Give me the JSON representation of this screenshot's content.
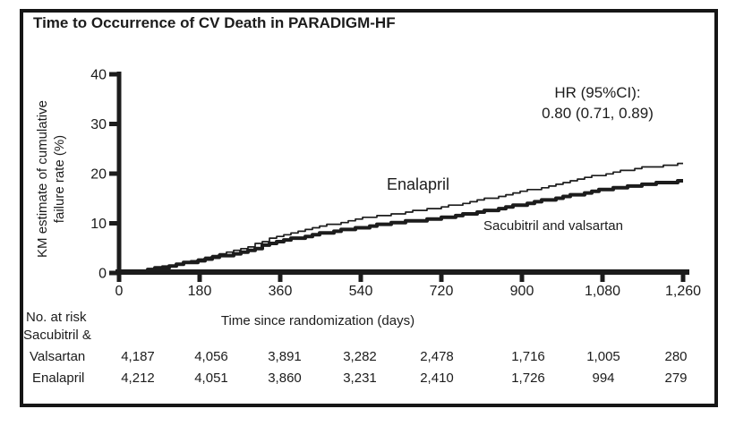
{
  "figure": {
    "title": "Time to Occurrence of CV Death in PARADIGM-HF"
  },
  "chart_data": {
    "type": "line",
    "subtype": "kaplan-meier-cumulative-failure",
    "title": "Time to Occurrence of CV Death in PARADIGM-HF",
    "xlabel": "Time since randomization (days)",
    "ylabel": "KM estimate of cumulative failure rate (%)",
    "ylabel_lines": [
      "KM estimate of cumulative",
      "failure rate (%)"
    ],
    "xlim": [
      0,
      1260
    ],
    "ylim": [
      0,
      40
    ],
    "x_ticks": [
      0,
      180,
      360,
      540,
      720,
      900,
      1080,
      1260
    ],
    "x_tick_labels": [
      "0",
      "180",
      "360",
      "540",
      "720",
      "900",
      "1,080",
      "1,260"
    ],
    "y_ticks": [
      0,
      10,
      20,
      30,
      40
    ],
    "y_tick_labels": [
      "0",
      "10",
      "20",
      "30",
      "40"
    ],
    "grid": false,
    "legend_position": "inline-curve-labels",
    "line_color": "#1c1c1c",
    "annotation": {
      "line1": "HR (95%CI):",
      "line2": "0.80 (0.71, 0.89)"
    },
    "series": [
      {
        "name": "Sacubitril and valsartan",
        "line_weight": "thick",
        "x": [
          0,
          90,
          180,
          270,
          360,
          450,
          540,
          630,
          720,
          810,
          900,
          990,
          1080,
          1170,
          1260
        ],
        "values": [
          0,
          1.2,
          2.7,
          4.4,
          6.6,
          8.1,
          9.4,
          10.4,
          11.3,
          12.6,
          14.0,
          15.5,
          17.0,
          17.9,
          18.8
        ]
      },
      {
        "name": "Enalapril",
        "line_weight": "thin",
        "x": [
          0,
          90,
          180,
          270,
          360,
          450,
          540,
          630,
          720,
          810,
          900,
          990,
          1080,
          1170,
          1260
        ],
        "values": [
          0,
          1.3,
          2.9,
          5.0,
          7.8,
          9.6,
          11.2,
          12.3,
          13.4,
          15.0,
          16.6,
          18.3,
          20.1,
          21.4,
          22.2
        ]
      }
    ],
    "risk_table": {
      "header": "No. at risk",
      "time_points": [
        0,
        180,
        360,
        540,
        720,
        900,
        1080,
        1260
      ],
      "rows": [
        {
          "label_lines": [
            "Sacubitril &",
            "Valsartan"
          ],
          "counts": [
            "4,187",
            "4,056",
            "3,891",
            "3,282",
            "2,478",
            "1,716",
            "1,005",
            "280"
          ]
        },
        {
          "label_lines": [
            "Enalapril"
          ],
          "counts": [
            "4,212",
            "4,051",
            "3,860",
            "3,231",
            "2,410",
            "1,726",
            "994",
            "279"
          ]
        }
      ]
    }
  }
}
